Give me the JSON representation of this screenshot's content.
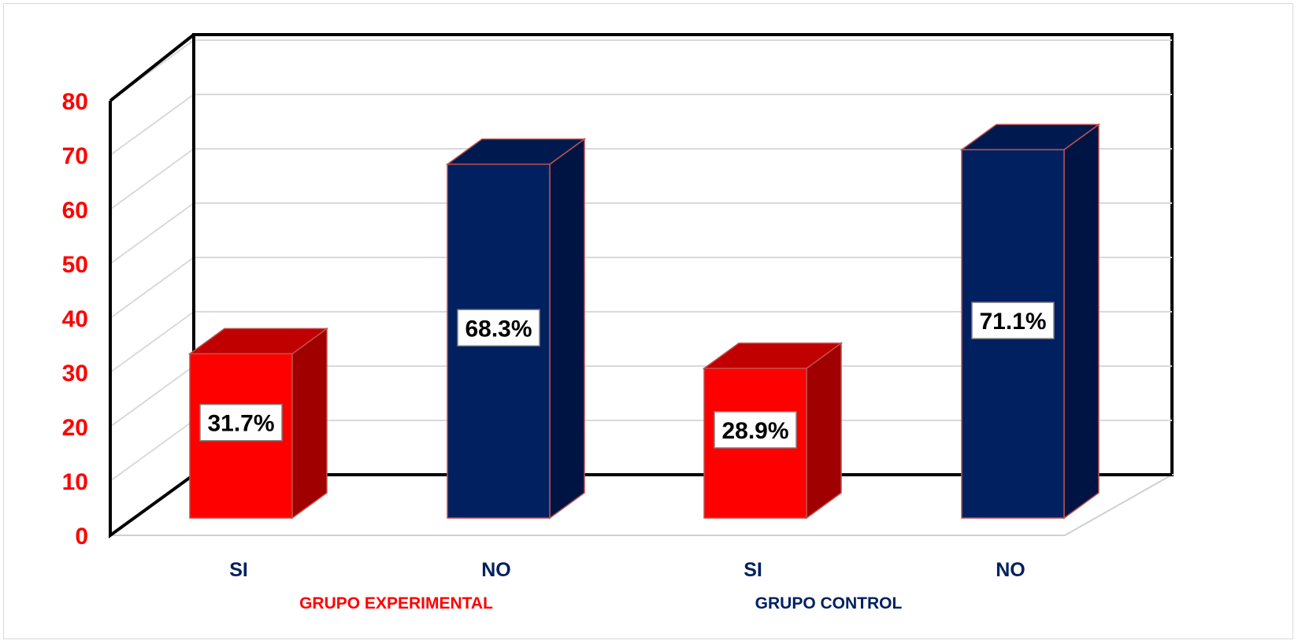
{
  "chart_data": {
    "type": "bar",
    "three_d": true,
    "categories": [
      "SI",
      "NO",
      "SI",
      "NO"
    ],
    "groups": [
      {
        "label": "GRUPO EXPERIMENTAL",
        "color": "#ff0000"
      },
      {
        "label": "GRUPO CONTROL",
        "color": "#002060"
      }
    ],
    "values": [
      31.7,
      68.3,
      28.9,
      71.1
    ],
    "data_labels": [
      "31.7%",
      "68.3%",
      "28.9%",
      "71.1%"
    ],
    "yticks": [
      "0",
      "10",
      "20",
      "30",
      "40",
      "50",
      "60",
      "70",
      "80"
    ],
    "ylim": [
      0,
      80
    ],
    "grid": true,
    "legend": "none",
    "colors": {
      "si_front": "#ff0000",
      "si_side": "#a00000",
      "si_top": "#c00000",
      "no_front": "#002060",
      "no_side": "#001444",
      "no_top": "#001a50",
      "tick_color": "#ff0000",
      "category_color": "#002060",
      "bar_outline": "#c0504d"
    }
  }
}
